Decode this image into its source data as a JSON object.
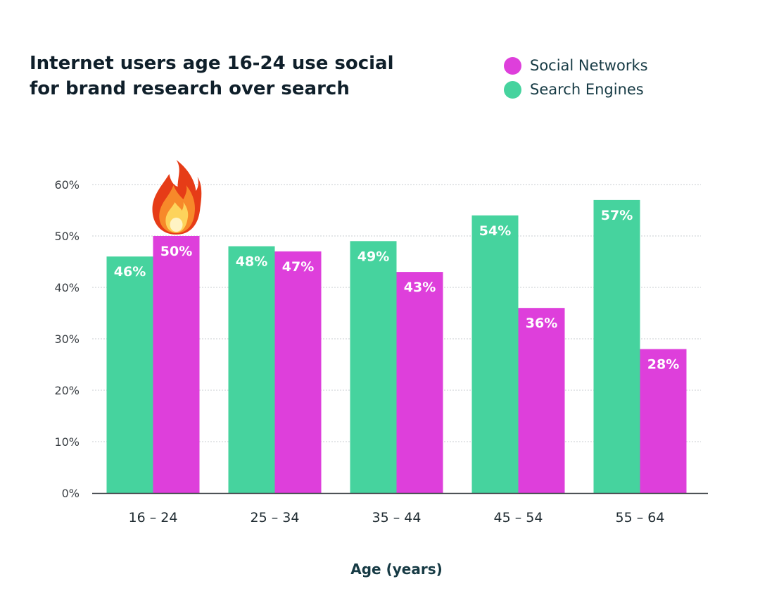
{
  "chart_data": {
    "type": "bar",
    "title_lines": [
      "Internet users age 16-24 use social",
      "for brand research over search"
    ],
    "xlabel": "Age (years)",
    "ylabel": "",
    "categories": [
      "16 – 24",
      "25 – 34",
      "35 – 44",
      "45 – 54",
      "55 – 64"
    ],
    "series": [
      {
        "name": "Search Engines",
        "values": [
          46,
          48,
          49,
          54,
          57
        ],
        "color": "#46d39e"
      },
      {
        "name": "Social Networks",
        "values": [
          50,
          47,
          43,
          36,
          28
        ],
        "color": "#de3fdb"
      }
    ],
    "ylim": [
      0,
      60
    ],
    "yticks": [
      0,
      10,
      20,
      30,
      40,
      50,
      60
    ],
    "ytick_suffix": "%",
    "value_label_suffix": "%",
    "grid": true,
    "legend_placement": "top-right",
    "legend_order": [
      "Social Networks",
      "Search Engines"
    ],
    "annotation": {
      "icon": "fire-icon",
      "category": "16 – 24",
      "series": "Social Networks"
    }
  }
}
